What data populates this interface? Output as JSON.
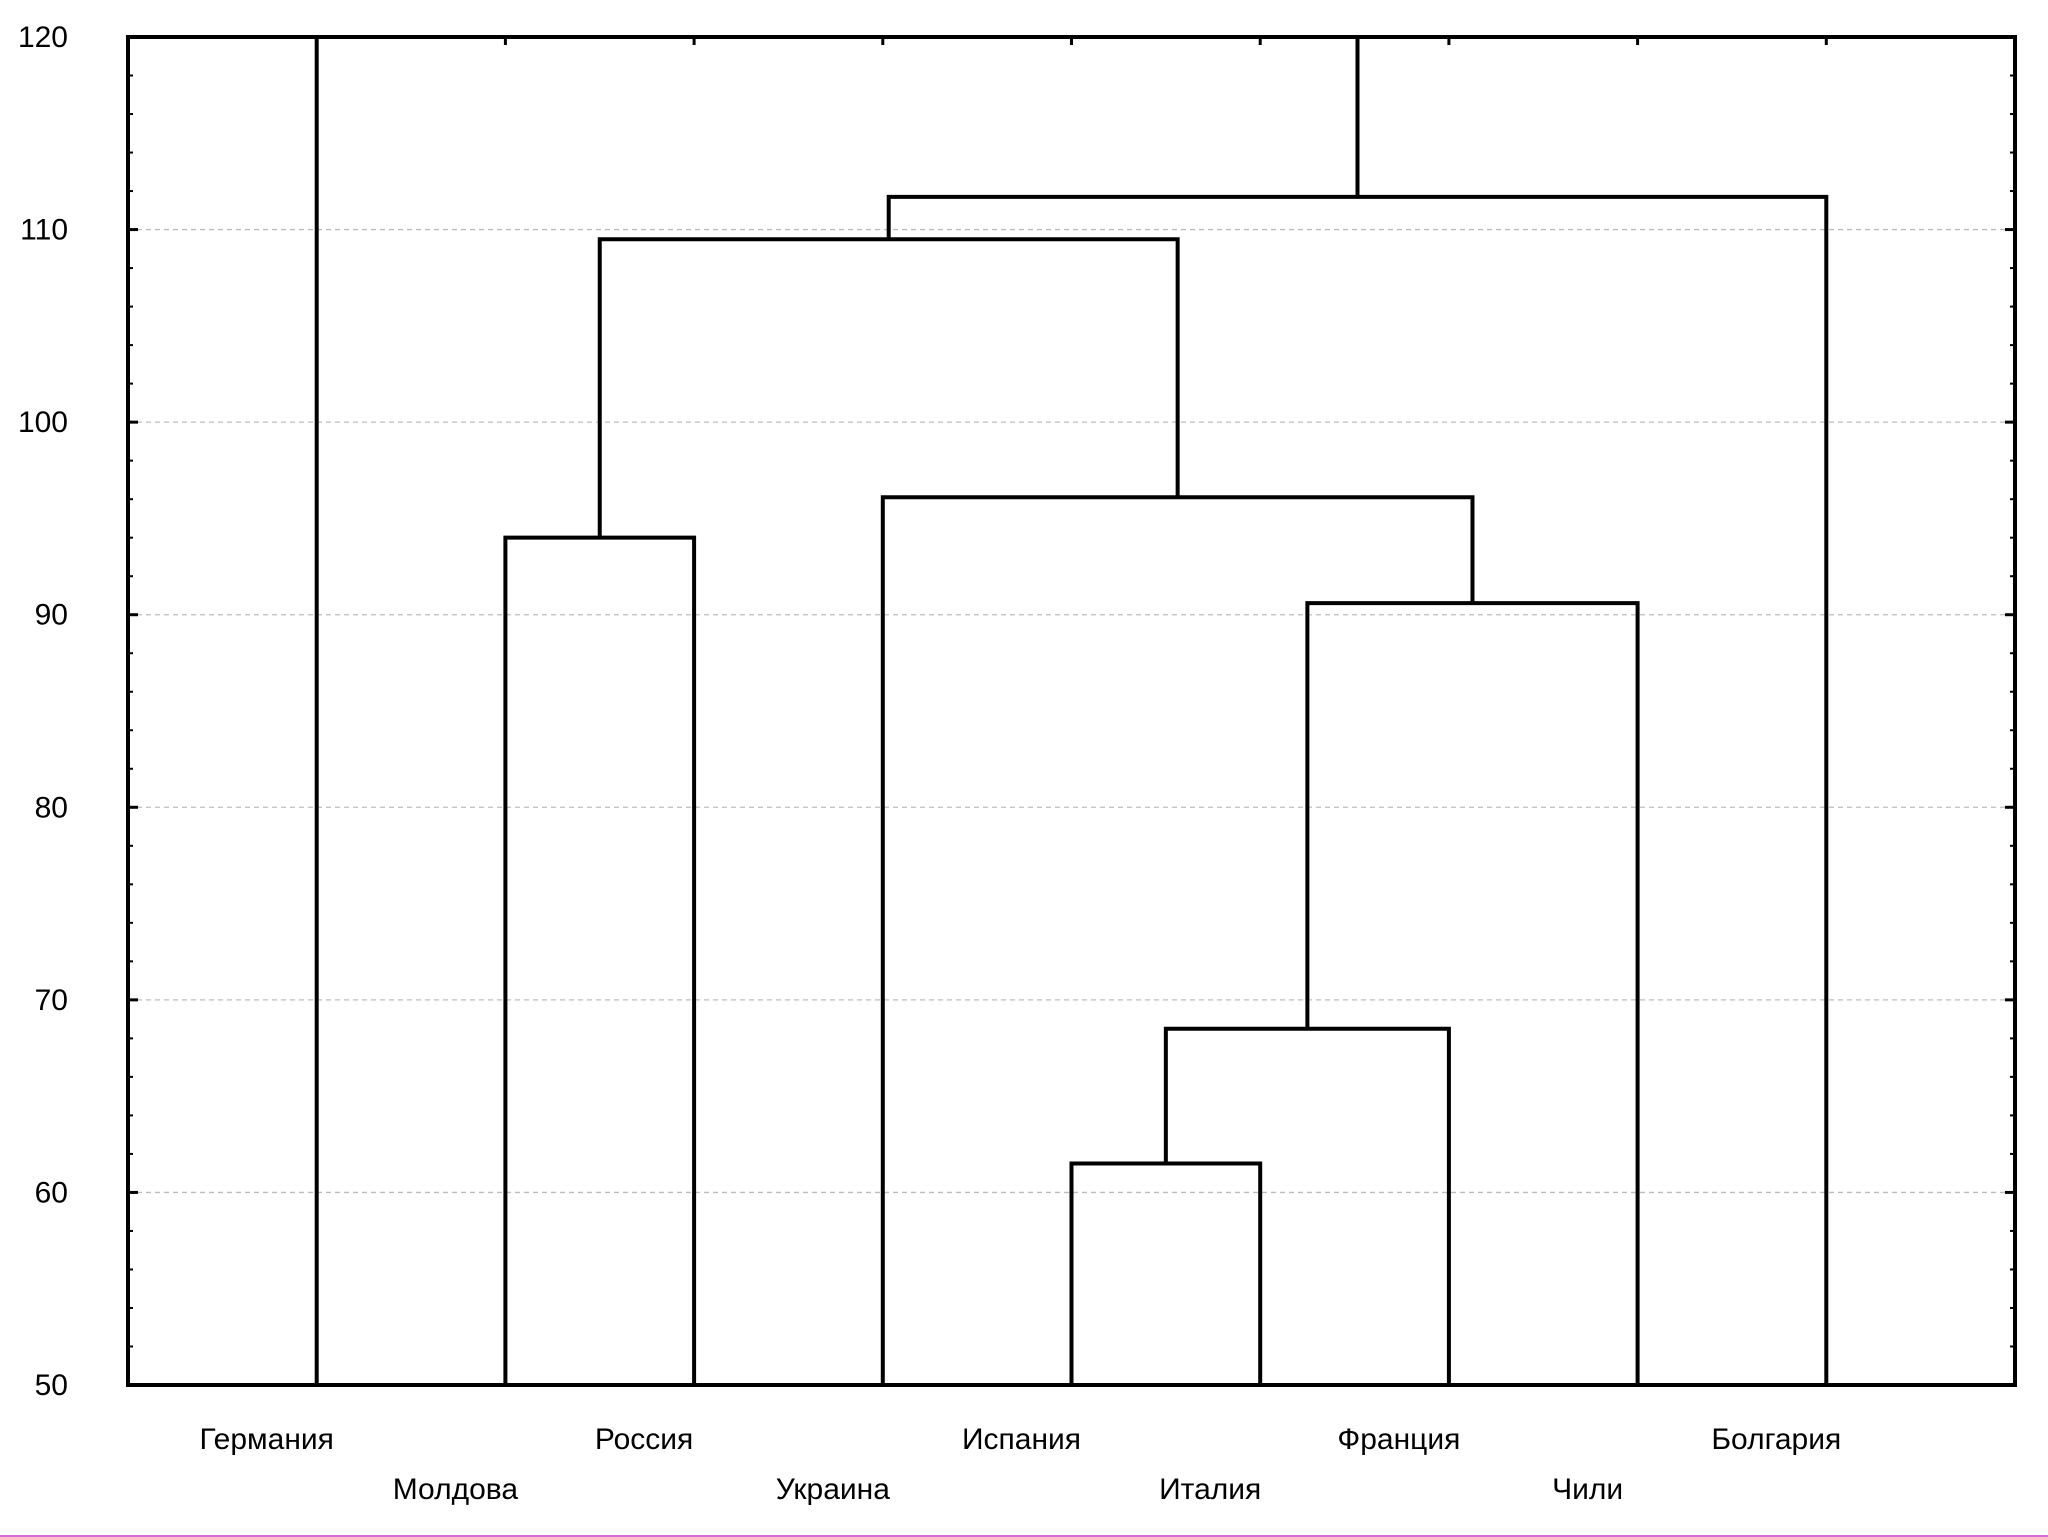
{
  "chart_data": {
    "type": "dendrogram",
    "title": "",
    "xlabel": "",
    "ylabel": "",
    "ylim": [
      50,
      120
    ],
    "yticks": [
      "50",
      "60",
      "70",
      "80",
      "90",
      "100",
      "110",
      "120"
    ],
    "grid": true,
    "leaves": [
      "Германия",
      "Молдова",
      "Россия",
      "Украина",
      "Испания",
      "Италия",
      "Франция",
      "Чили",
      "Болгария"
    ],
    "merges": [
      {
        "left": "Испания",
        "right": "Италия",
        "height": 61.5
      },
      {
        "left": "Испания+Италия",
        "right": "Франция",
        "height": 68.5
      },
      {
        "left": "Испания+Италия+Франция",
        "right": "Чили",
        "height": 90.6
      },
      {
        "left": "Молдова",
        "right": "Россия",
        "height": 94.0
      },
      {
        "left": "Украина",
        "right": "Испания+Италия+Франция+Чили",
        "height": 96.1
      },
      {
        "left": "Молдова+Россия",
        "right": "Украина+Испания+Италия+Франция+Чили",
        "height": 109.5
      },
      {
        "left": "Молдова+…+Чили",
        "right": "Болгария",
        "height": 111.7
      },
      {
        "left": "Германия",
        "right": "Молдова+…+Болгария",
        "height": 120
      }
    ]
  },
  "page": {
    "bottom_border_color": "#d56bd5"
  }
}
